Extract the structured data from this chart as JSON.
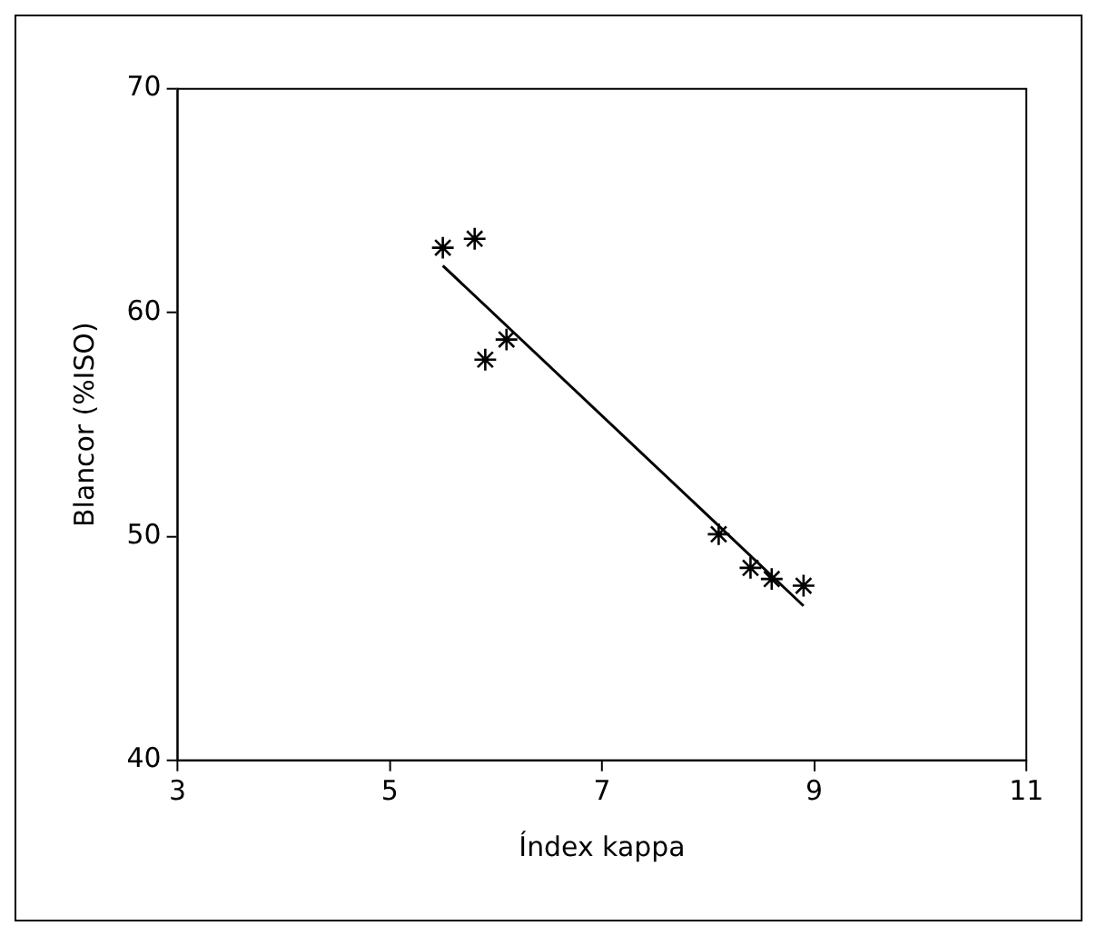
{
  "chart_data": {
    "type": "scatter",
    "xlabel": "Índex kappa",
    "ylabel": "Blancor (%ISO)",
    "xlim": [
      3,
      11
    ],
    "ylim": [
      40,
      70
    ],
    "xticks": [
      3,
      5,
      7,
      9,
      11
    ],
    "yticks": [
      40,
      50,
      60,
      70
    ],
    "grid": false,
    "legend": false,
    "marker": "cross",
    "series": [
      {
        "color": "#000000",
        "x": [
          5.5,
          5.8,
          5.9,
          6.1,
          8.1,
          8.4,
          8.6,
          8.9
        ],
        "values": [
          62.9,
          63.3,
          57.9,
          58.8,
          50.1,
          48.6,
          48.1,
          47.8
        ]
      },
      {
        "type": "line",
        "color": "#000000",
        "marker": "none",
        "x": [
          5.5,
          8.9
        ],
        "values": [
          62.1,
          46.9
        ]
      }
    ]
  }
}
